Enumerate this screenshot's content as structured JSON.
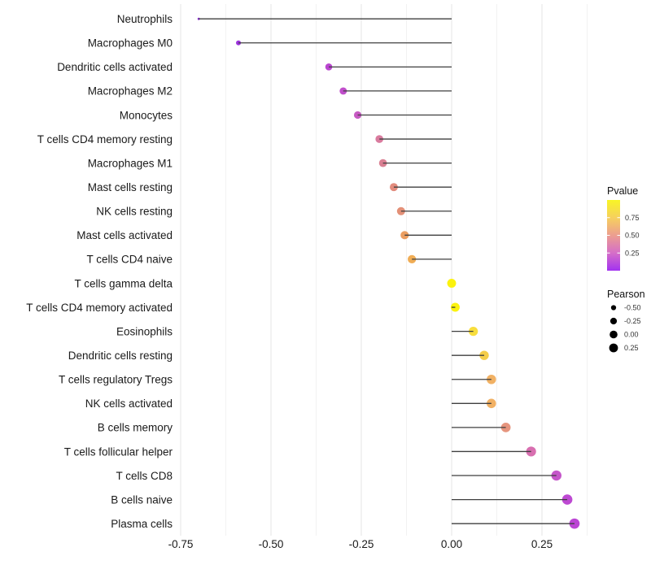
{
  "chart_data": {
    "type": "scatter",
    "variant": "lollipop",
    "title": "",
    "xlabel": "",
    "ylabel": "",
    "grid": true,
    "background": "#ffffff",
    "segment_color": "#3f3f3f",
    "categories": [
      "Neutrophils",
      "Macrophages M0",
      "Dendritic cells activated",
      "Macrophages M2",
      "Monocytes",
      "T cells CD4 memory resting",
      "Macrophages M1",
      "Mast cells resting",
      "NK cells resting",
      "Mast cells activated",
      "T cells CD4 naive",
      "T cells gamma delta",
      "T cells CD4 memory activated",
      "Eosinophils",
      "Dendritic cells resting",
      "T cells regulatory  Tregs",
      "NK cells activated",
      "B cells memory",
      "T cells follicular helper",
      "T cells CD8",
      "B cells naive",
      "Plasma cells"
    ],
    "series": [
      {
        "name": "Pearson",
        "values": [
          -0.7,
          -0.59,
          -0.34,
          -0.3,
          -0.26,
          -0.2,
          -0.19,
          -0.16,
          -0.14,
          -0.13,
          -0.11,
          0.0,
          0.01,
          0.06,
          0.09,
          0.11,
          0.11,
          0.15,
          0.22,
          0.29,
          0.32,
          0.34
        ]
      }
    ],
    "point_colors": [
      "#8c2bd8",
      "#9c33dc",
      "#ba46d0",
      "#c04ecb",
      "#c75ac3",
      "#d97b9e",
      "#da8093",
      "#e28b7d",
      "#e39077",
      "#eb9e61",
      "#f0ad55",
      "#fbf20e",
      "#fbf20e",
      "#f8de3d",
      "#f4cd49",
      "#f1b164",
      "#f1b164",
      "#e6957e",
      "#d86fb0",
      "#c556ca",
      "#bd49d2",
      "#bb44d4"
    ],
    "xlim": [
      -0.77,
      0.4
    ],
    "x_ticks": [
      -0.75,
      -0.5,
      -0.25,
      0,
      0.25
    ],
    "x_tick_labels": [
      "-0.75",
      "-0.50",
      "-0.25",
      "0.00",
      "0.25"
    ],
    "x_minor_ticks": [
      -0.625,
      -0.375,
      -0.125,
      0.125,
      0.375
    ],
    "legend_position": "right",
    "legend": {
      "pvalue": {
        "title": "Pvalue",
        "tick_labels": [
          "0.75",
          "0.50",
          "0.25"
        ],
        "tick_values": [
          0.75,
          0.5,
          0.25
        ],
        "range": [
          0,
          1
        ],
        "gradient": [
          {
            "p": 0.0,
            "color": "#a232f0"
          },
          {
            "p": 0.25,
            "color": "#d56ec8"
          },
          {
            "p": 0.5,
            "color": "#ec9e90"
          },
          {
            "p": 0.75,
            "color": "#f6d05e"
          },
          {
            "p": 1.0,
            "color": "#f8f525"
          }
        ]
      },
      "pearson": {
        "title": "Pearson",
        "entries": [
          {
            "label": "-0.50",
            "value": -0.5
          },
          {
            "label": "-0.25",
            "value": -0.25
          },
          {
            "label": "0.00",
            "value": 0.0
          },
          {
            "label": "0.25",
            "value": 0.25
          }
        ],
        "dot_color": "#000000"
      }
    },
    "colors": {
      "axis_text": "#1a1a1a",
      "grid_major": "#e4e4e4",
      "grid_minor": "#f2f2f2"
    }
  }
}
